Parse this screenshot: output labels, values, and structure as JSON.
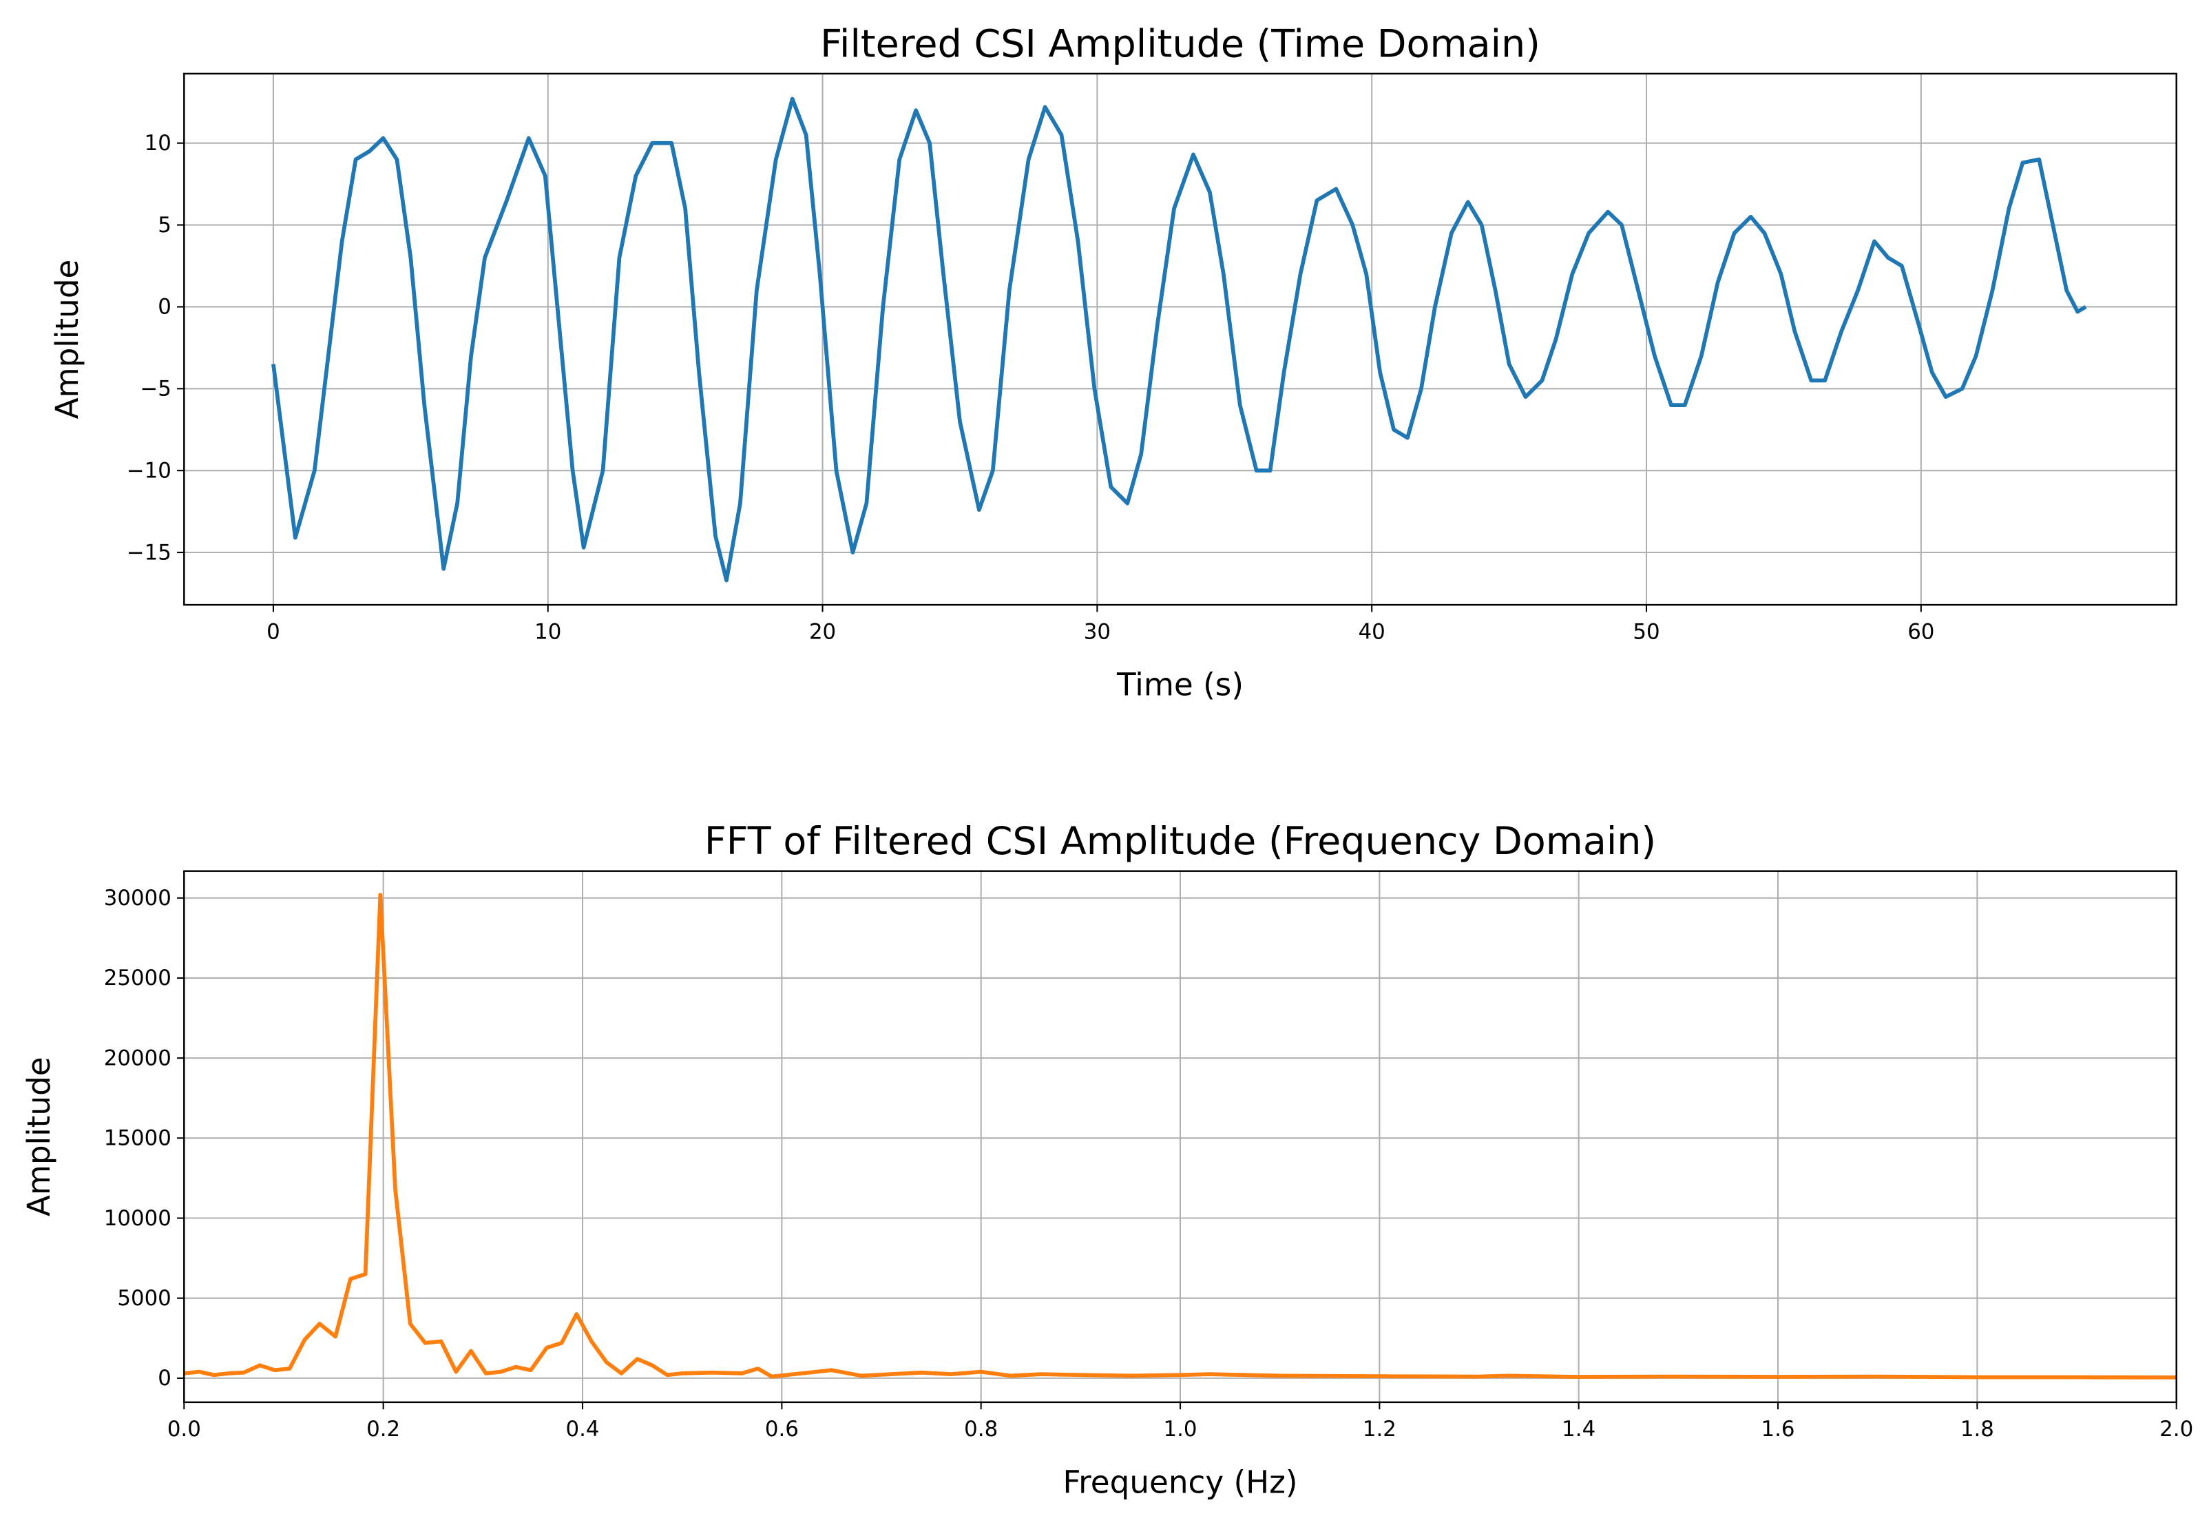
{
  "chart_data": [
    {
      "type": "line",
      "title": "Filtered CSI Amplitude (Time Domain)",
      "xlabel": "Time (s)",
      "ylabel": "Amplitude",
      "color": "#1f77b4",
      "grid": true,
      "x": [
        0,
        0.8,
        1.5,
        2,
        2.5,
        3,
        3.5,
        4,
        4.5,
        5,
        5.5,
        6.2,
        6.7,
        7.2,
        7.7,
        8.5,
        9.3,
        9.9,
        10.4,
        10.9,
        11.3,
        12,
        12.6,
        13.2,
        13.8,
        14.5,
        15,
        15.5,
        16.1,
        16.5,
        17,
        17.6,
        18.3,
        18.9,
        19.4,
        19.9,
        20.5,
        21.1,
        21.6,
        22.2,
        22.8,
        23.4,
        23.9,
        24.4,
        25,
        25.7,
        26.2,
        26.8,
        27.5,
        28.1,
        28.7,
        29.3,
        29.9,
        30.5,
        31.1,
        31.6,
        32.2,
        32.8,
        33.5,
        34.1,
        34.6,
        35.2,
        35.8,
        36.3,
        36.8,
        37.4,
        38,
        38.7,
        39.3,
        39.8,
        40.3,
        40.8,
        41.3,
        41.8,
        42.3,
        42.9,
        43.5,
        44,
        44.5,
        45,
        45.6,
        46.2,
        46.7,
        47.3,
        47.9,
        48.6,
        49.1,
        49.7,
        50.3,
        50.9,
        51.4,
        52,
        52.6,
        53.2,
        53.8,
        54.3,
        54.9,
        55.4,
        56,
        56.5,
        57.1,
        57.7,
        58.3,
        58.8,
        59.3,
        59.9,
        60.4,
        60.9,
        61.5,
        62,
        62.6,
        63.2,
        63.7,
        64.3,
        64.8,
        65.3,
        65.7,
        66
      ],
      "values": [
        -3.5,
        -14.1,
        -10,
        -3,
        4,
        9,
        9.5,
        10.3,
        9,
        3,
        -6,
        -16,
        -12,
        -3,
        3,
        6.5,
        10.3,
        8,
        -1,
        -10,
        -14.7,
        -10,
        3,
        8,
        10,
        10,
        6,
        -4,
        -14,
        -16.7,
        -12,
        1,
        9,
        12.7,
        10.5,
        2,
        -10,
        -15,
        -12,
        0,
        9,
        12,
        10,
        2,
        -7,
        -12.4,
        -10,
        1,
        9,
        12.2,
        10.5,
        4,
        -5,
        -11,
        -12,
        -9,
        -1,
        6,
        9.3,
        7,
        2,
        -6,
        -10,
        -10,
        -4,
        2,
        6.5,
        7.2,
        5,
        2,
        -4,
        -7.5,
        -8,
        -5,
        0,
        4.5,
        6.4,
        5,
        1,
        -3.5,
        -5.5,
        -4.5,
        -2,
        2,
        4.5,
        5.8,
        5,
        1,
        -3,
        -6,
        -6,
        -3,
        1.5,
        4.5,
        5.5,
        4.5,
        2,
        -1.5,
        -4.5,
        -4.5,
        -1.5,
        1,
        4,
        3,
        2.5,
        -1,
        -4,
        -5.5,
        -5,
        -3,
        1,
        6,
        8.8,
        9,
        5,
        1,
        -0.3,
        0
      ],
      "xlim": [
        -3.25,
        69.3
      ],
      "ylim": [
        -18.2,
        14.24
      ],
      "xticks": [
        0,
        10,
        20,
        30,
        40,
        50,
        60
      ],
      "yticks": [
        {
          "value": -15,
          "label": "−15"
        },
        {
          "value": -10,
          "label": "−10"
        },
        {
          "value": -5,
          "label": "−5"
        },
        0,
        5,
        10
      ]
    },
    {
      "type": "line",
      "title": "FFT of Filtered CSI Amplitude (Frequency Domain)",
      "xlabel": "Frequency (Hz)",
      "ylabel": "Amplitude",
      "color": "#ff7f0e",
      "grid": true,
      "x": [
        0,
        0.015,
        0.03,
        0.045,
        0.06,
        0.076,
        0.091,
        0.106,
        0.121,
        0.136,
        0.152,
        0.167,
        0.182,
        0.197,
        0.212,
        0.227,
        0.242,
        0.258,
        0.273,
        0.288,
        0.303,
        0.318,
        0.333,
        0.348,
        0.364,
        0.379,
        0.394,
        0.409,
        0.424,
        0.439,
        0.455,
        0.47,
        0.485,
        0.5,
        0.53,
        0.56,
        0.576,
        0.59,
        0.62,
        0.65,
        0.68,
        0.71,
        0.74,
        0.77,
        0.8,
        0.83,
        0.86,
        0.9,
        0.95,
        1.0,
        1.03,
        1.1,
        1.2,
        1.3,
        1.33,
        1.4,
        1.5,
        1.6,
        1.7,
        1.8,
        1.9,
        2.0
      ],
      "values": [
        300,
        400,
        200,
        300,
        350,
        800,
        500,
        600,
        2400,
        3400,
        2600,
        6200,
        6500,
        30200,
        11800,
        3400,
        2200,
        2300,
        400,
        1700,
        300,
        400,
        700,
        500,
        1900,
        2200,
        4000,
        2300,
        1000,
        300,
        1200,
        800,
        200,
        300,
        350,
        300,
        600,
        100,
        300,
        500,
        150,
        250,
        350,
        250,
        400,
        150,
        250,
        200,
        150,
        200,
        250,
        150,
        120,
        100,
        150,
        80,
        100,
        80,
        100,
        60,
        60,
        50
      ],
      "xlim": [
        0,
        2
      ],
      "ylim": [
        -1504,
        31680
      ],
      "xticks": [
        {
          "value": 0,
          "label": "0.0"
        },
        0.2,
        0.4,
        0.6,
        0.8,
        {
          "value": 1,
          "label": "1.0"
        },
        1.2,
        1.4,
        1.6,
        1.8,
        {
          "value": 2,
          "label": "2.0"
        }
      ],
      "yticks": [
        0,
        5000,
        10000,
        15000,
        20000,
        25000,
        30000
      ]
    }
  ]
}
